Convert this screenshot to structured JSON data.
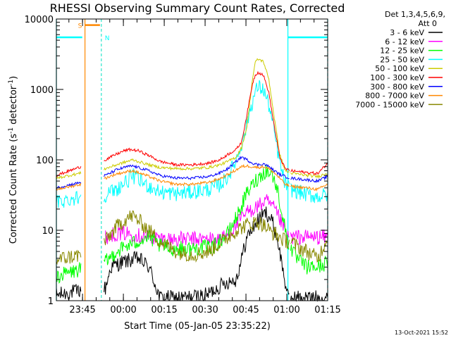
{
  "chart_data": {
    "type": "line",
    "title": "RHESSI Observing Summary Count Rates, Corrected",
    "xlabel": "Start Time (05-Jan-05 23:35:22)",
    "ylabel_main": "Corrected Count Rate (s",
    "ylabel_sup1": "-1",
    "ylabel_mid": " detector",
    "ylabel_sup2": "-1",
    "ylabel_end": ")",
    "yscale": "log",
    "ylim": [
      1,
      10000
    ],
    "xlim_minutes": [
      0,
      99.6
    ],
    "x_ticks": [
      {
        "label": "23:45",
        "min": 9.6
      },
      {
        "label": "00:00",
        "min": 24.6
      },
      {
        "label": "00:15",
        "min": 39.6
      },
      {
        "label": "00:30",
        "min": 54.6
      },
      {
        "label": "00:45",
        "min": 69.6
      },
      {
        "label": "01:00",
        "min": 84.6
      },
      {
        "label": "01:15",
        "min": 99.6
      }
    ],
    "y_ticks": [
      {
        "label": "1",
        "value": 1
      },
      {
        "label": "10",
        "value": 10
      },
      {
        "label": "100",
        "value": 100
      },
      {
        "label": "1000",
        "value": 1000
      },
      {
        "label": "10000",
        "value": 10000
      }
    ],
    "legend_header": [
      "Det 1,3,4,5,6,9,",
      "Att 0"
    ],
    "timestamp": "13-Oct-2021 15:52",
    "annotations": {
      "saa_label": "S",
      "night_label": "N",
      "saa_interval_min": [
        10.5,
        16.0
      ],
      "night_interval_min": [
        16.5,
        85.0
      ],
      "night_markers_min": [
        0.0,
        85.0,
        99.6
      ],
      "saa_markers_min": [
        10.5
      ],
      "saa_level": 5500,
      "night_level": 5500
    },
    "gaps_min": [
      [
        9.0,
        17.5
      ],
      [
        85.5,
        86.0
      ]
    ],
    "series": [
      {
        "name": "3 - 6 keV",
        "color": "#000000",
        "kind": "noisy",
        "points": [
          [
            0,
            1.2
          ],
          [
            9,
            1.4
          ],
          [
            18,
            1.5
          ],
          [
            20,
            3
          ],
          [
            24,
            3.5
          ],
          [
            30,
            4
          ],
          [
            34,
            3
          ],
          [
            38,
            1.1
          ],
          [
            48,
            1.1
          ],
          [
            55,
            1.2
          ],
          [
            62,
            1.8
          ],
          [
            66,
            2
          ],
          [
            70,
            8
          ],
          [
            74,
            14
          ],
          [
            77,
            18
          ],
          [
            79,
            14
          ],
          [
            81,
            8
          ],
          [
            83,
            3
          ],
          [
            85,
            1.1
          ],
          [
            99.6,
            1.1
          ]
        ]
      },
      {
        "name": "6 - 12 keV",
        "color": "#ff00ff",
        "kind": "noisy",
        "points": [
          [
            18,
            8
          ],
          [
            22,
            9
          ],
          [
            26,
            9
          ],
          [
            30,
            8.5
          ],
          [
            34,
            8
          ],
          [
            40,
            7.5
          ],
          [
            50,
            7.5
          ],
          [
            58,
            7.5
          ],
          [
            62,
            8
          ],
          [
            66,
            12
          ],
          [
            70,
            18
          ],
          [
            74,
            22
          ],
          [
            77,
            26
          ],
          [
            80,
            20
          ],
          [
            83,
            12
          ],
          [
            85,
            8
          ],
          [
            99.6,
            8
          ]
        ]
      },
      {
        "name": "12 - 25 keV",
        "color": "#00ff00",
        "kind": "noisy",
        "points": [
          [
            0,
            2.2
          ],
          [
            9,
            2.8
          ],
          [
            18,
            3.5
          ],
          [
            22,
            5
          ],
          [
            26,
            6
          ],
          [
            30,
            7
          ],
          [
            34,
            8
          ],
          [
            38,
            6
          ],
          [
            42,
            5.5
          ],
          [
            50,
            5.5
          ],
          [
            58,
            6
          ],
          [
            63,
            9
          ],
          [
            67,
            18
          ],
          [
            70,
            34
          ],
          [
            73,
            50
          ],
          [
            75,
            60
          ],
          [
            77,
            70
          ],
          [
            79,
            64
          ],
          [
            81,
            40
          ],
          [
            83,
            16
          ],
          [
            85,
            7
          ],
          [
            88,
            4
          ],
          [
            92,
            3
          ],
          [
            96,
            3
          ],
          [
            99.6,
            3.5
          ]
        ]
      },
      {
        "name": "25 - 50 keV",
        "color": "#00ffff",
        "kind": "noisy",
        "points": [
          [
            0,
            25
          ],
          [
            9,
            30
          ],
          [
            18,
            32
          ],
          [
            22,
            38
          ],
          [
            26,
            50
          ],
          [
            28,
            60
          ],
          [
            30,
            52
          ],
          [
            34,
            42
          ],
          [
            38,
            35
          ],
          [
            44,
            33
          ],
          [
            50,
            35
          ],
          [
            56,
            38
          ],
          [
            60,
            44
          ],
          [
            63,
            58
          ],
          [
            66,
            100
          ],
          [
            69,
            220
          ],
          [
            71,
            500
          ],
          [
            73,
            900
          ],
          [
            74,
            1100
          ],
          [
            76,
            1000
          ],
          [
            78,
            600
          ],
          [
            80,
            250
          ],
          [
            82,
            90
          ],
          [
            84,
            45
          ],
          [
            86,
            38
          ],
          [
            92,
            32
          ],
          [
            96,
            30
          ],
          [
            99.6,
            32
          ]
        ]
      },
      {
        "name": "50 - 100 keV",
        "color": "#cccc00",
        "kind": "smooth",
        "points": [
          [
            0,
            55
          ],
          [
            9,
            65
          ],
          [
            18,
            75
          ],
          [
            22,
            85
          ],
          [
            26,
            95
          ],
          [
            28,
            100
          ],
          [
            30,
            95
          ],
          [
            34,
            85
          ],
          [
            38,
            78
          ],
          [
            44,
            75
          ],
          [
            50,
            75
          ],
          [
            56,
            78
          ],
          [
            60,
            85
          ],
          [
            63,
            95
          ],
          [
            66,
            110
          ],
          [
            68,
            150
          ],
          [
            70,
            300
          ],
          [
            72,
            1400
          ],
          [
            73,
            2400
          ],
          [
            74,
            2700
          ],
          [
            76,
            2500
          ],
          [
            78,
            1400
          ],
          [
            80,
            400
          ],
          [
            82,
            120
          ],
          [
            84,
            70
          ],
          [
            86,
            65
          ],
          [
            92,
            60
          ],
          [
            96,
            58
          ],
          [
            99.6,
            65
          ]
        ]
      },
      {
        "name": "100 - 300 keV",
        "color": "#ff0000",
        "kind": "smooth",
        "points": [
          [
            0,
            60
          ],
          [
            9,
            80
          ],
          [
            18,
            100
          ],
          [
            22,
            120
          ],
          [
            25,
            135
          ],
          [
            27,
            140
          ],
          [
            30,
            135
          ],
          [
            34,
            115
          ],
          [
            38,
            95
          ],
          [
            44,
            85
          ],
          [
            50,
            85
          ],
          [
            56,
            90
          ],
          [
            60,
            100
          ],
          [
            63,
            120
          ],
          [
            66,
            140
          ],
          [
            68,
            180
          ],
          [
            70,
            450
          ],
          [
            72,
            1200
          ],
          [
            73,
            1600
          ],
          [
            74,
            1750
          ],
          [
            76,
            1600
          ],
          [
            78,
            900
          ],
          [
            80,
            300
          ],
          [
            82,
            110
          ],
          [
            84,
            75
          ],
          [
            86,
            70
          ],
          [
            92,
            66
          ],
          [
            96,
            64
          ],
          [
            99.6,
            90
          ]
        ]
      },
      {
        "name": "300 - 800 keV",
        "color": "#0000ff",
        "kind": "smooth",
        "points": [
          [
            0,
            40
          ],
          [
            9,
            48
          ],
          [
            18,
            60
          ],
          [
            22,
            72
          ],
          [
            26,
            80
          ],
          [
            28,
            82
          ],
          [
            30,
            78
          ],
          [
            34,
            70
          ],
          [
            38,
            60
          ],
          [
            44,
            55
          ],
          [
            50,
            55
          ],
          [
            56,
            58
          ],
          [
            60,
            65
          ],
          [
            63,
            75
          ],
          [
            66,
            95
          ],
          [
            68,
            110
          ],
          [
            70,
            100
          ],
          [
            72,
            90
          ],
          [
            74,
            85
          ],
          [
            76,
            88
          ],
          [
            78,
            80
          ],
          [
            80,
            70
          ],
          [
            82,
            62
          ],
          [
            84,
            58
          ],
          [
            86,
            55
          ],
          [
            92,
            52
          ],
          [
            96,
            50
          ],
          [
            99.6,
            58
          ]
        ]
      },
      {
        "name": "800 - 7000 keV",
        "color": "#ff8800",
        "kind": "smooth",
        "points": [
          [
            0,
            38
          ],
          [
            9,
            45
          ],
          [
            18,
            55
          ],
          [
            22,
            63
          ],
          [
            26,
            68
          ],
          [
            28,
            70
          ],
          [
            30,
            66
          ],
          [
            34,
            58
          ],
          [
            38,
            50
          ],
          [
            44,
            45
          ],
          [
            50,
            45
          ],
          [
            56,
            48
          ],
          [
            60,
            54
          ],
          [
            63,
            62
          ],
          [
            66,
            72
          ],
          [
            68,
            80
          ],
          [
            70,
            82
          ],
          [
            72,
            80
          ],
          [
            74,
            78
          ],
          [
            76,
            80
          ],
          [
            78,
            75
          ],
          [
            80,
            65
          ],
          [
            82,
            55
          ],
          [
            84,
            45
          ],
          [
            86,
            42
          ],
          [
            92,
            40
          ],
          [
            96,
            38
          ],
          [
            99.6,
            45
          ]
        ]
      },
      {
        "name": "7000 - 15000 keV",
        "color": "#888800",
        "kind": "noisy",
        "points": [
          [
            0,
            3.8
          ],
          [
            9,
            4.5
          ],
          [
            18,
            7
          ],
          [
            22,
            11
          ],
          [
            26,
            15
          ],
          [
            28,
            16
          ],
          [
            30,
            14
          ],
          [
            34,
            10
          ],
          [
            38,
            7
          ],
          [
            44,
            5
          ],
          [
            50,
            4.5
          ],
          [
            56,
            5
          ],
          [
            60,
            6.5
          ],
          [
            63,
            8
          ],
          [
            66,
            10
          ],
          [
            68,
            11
          ],
          [
            70,
            12
          ],
          [
            72,
            12.5
          ],
          [
            74,
            13
          ],
          [
            76,
            12
          ],
          [
            78,
            10
          ],
          [
            80,
            9
          ],
          [
            82,
            8
          ],
          [
            84,
            7
          ],
          [
            86,
            7
          ],
          [
            88,
            6
          ],
          [
            92,
            5
          ],
          [
            96,
            4
          ],
          [
            99.6,
            8
          ]
        ]
      }
    ]
  }
}
